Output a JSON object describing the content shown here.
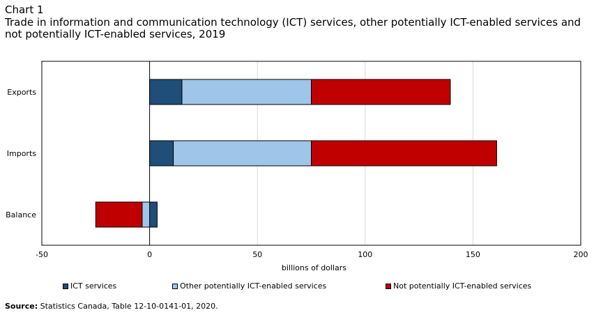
{
  "header": {
    "chart_label": "Chart 1",
    "title": "Trade in information and communication technology (ICT) services, other potentially ICT-enabled services and not potentially ICT-enabled services, 2019"
  },
  "footer": {
    "source_label": "Source:",
    "source_text": "Statistics Canada, Table 12-10-0141-01, 2020."
  },
  "chart_data": {
    "type": "bar",
    "orientation": "horizontal",
    "stacked": true,
    "title": "Trade in information and communication technology (ICT) services, other potentially ICT-enabled services and not potentially ICT-enabled services, 2019",
    "categories": [
      "Exports",
      "Imports",
      "Balance"
    ],
    "series": [
      {
        "name": "ICT services",
        "color": "#1f4e79",
        "values": [
          15,
          11,
          3.5
        ]
      },
      {
        "name": "Other potentially ICT-enabled services",
        "color": "#9fc5e8",
        "values": [
          60,
          64,
          -3.5
        ]
      },
      {
        "name": "Not potentially ICT-enabled services",
        "color": "#c00000",
        "values": [
          64.5,
          86,
          -21.5
        ]
      }
    ],
    "xlabel": "billions of dollars",
    "ylabel": "",
    "xlim": [
      -50,
      200
    ],
    "xticks": [
      -50,
      0,
      50,
      100,
      150,
      200
    ],
    "grid": true,
    "legend_position": "bottom"
  }
}
